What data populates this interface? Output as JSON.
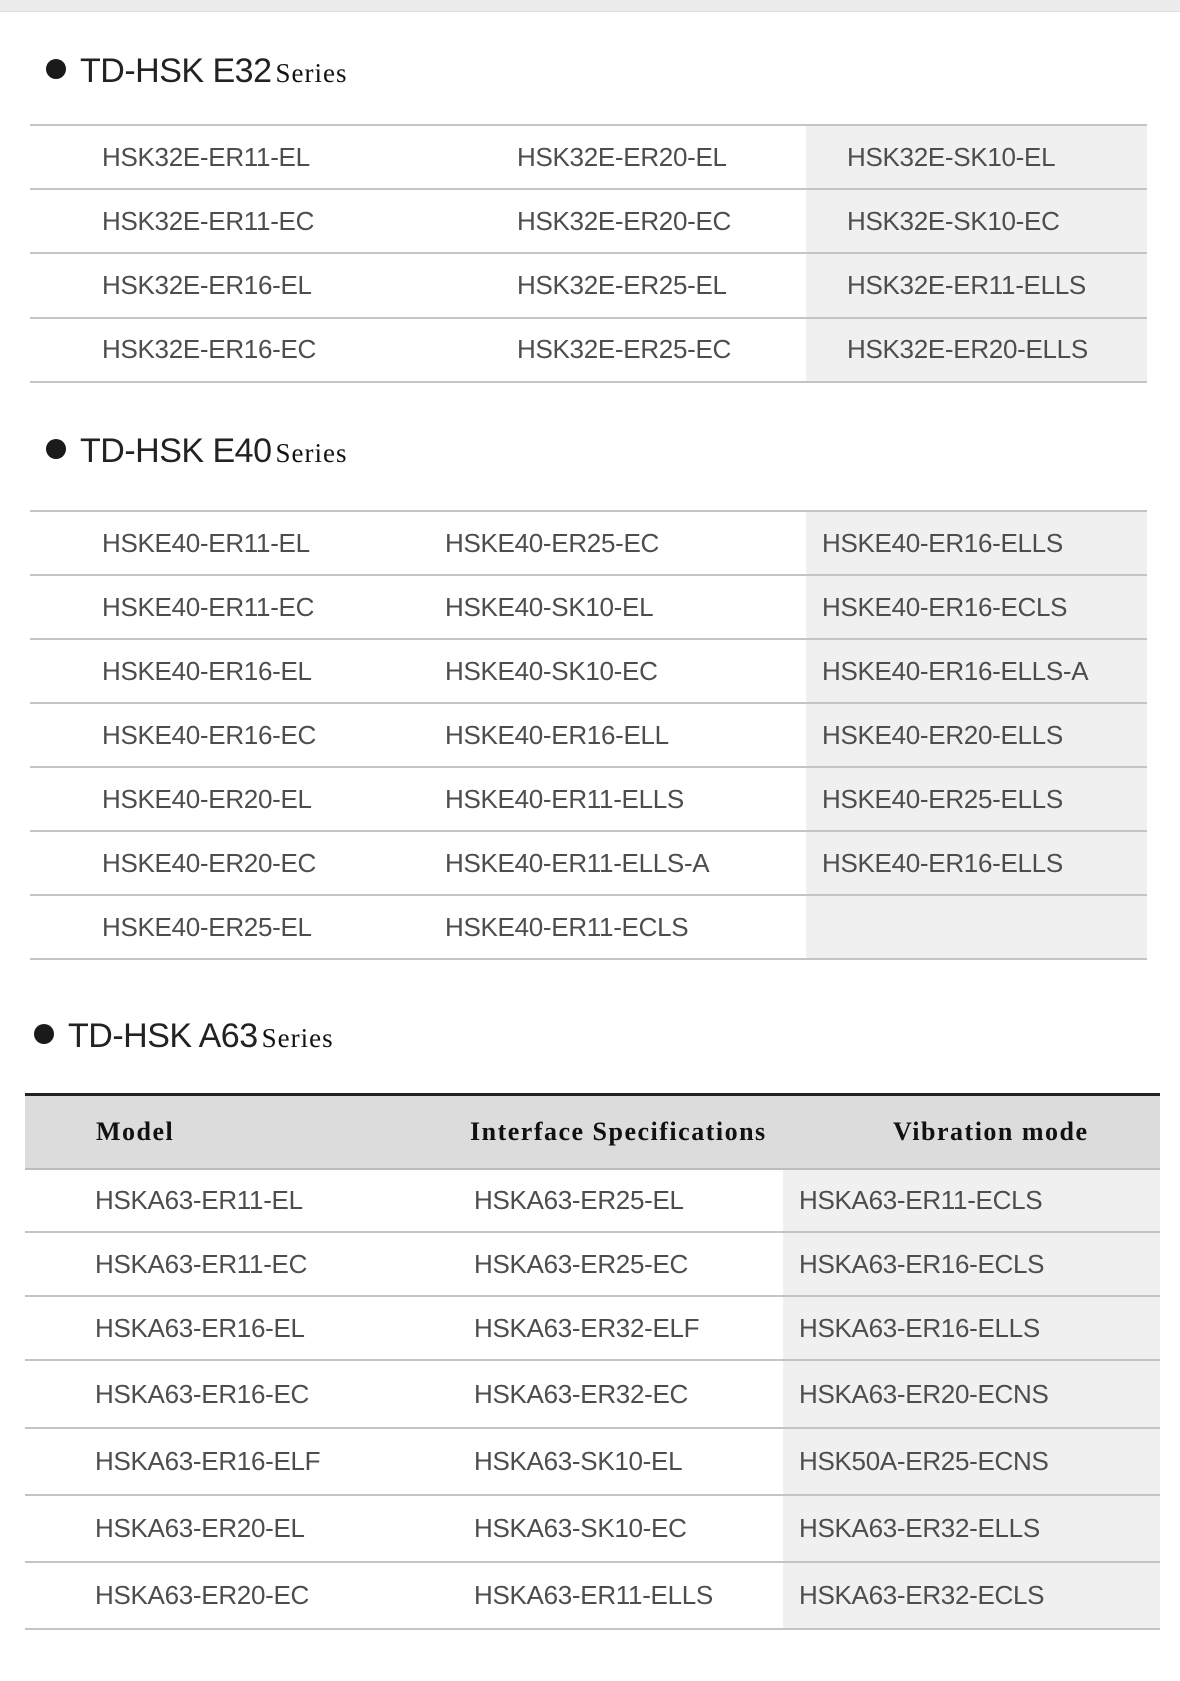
{
  "sections": [
    {
      "title": "TD-HSK E32",
      "suffix": "Series",
      "rows": [
        [
          "HSK32E-ER11-EL",
          "HSK32E-ER20-EL",
          "HSK32E-SK10-EL"
        ],
        [
          "HSK32E-ER11-EC",
          "HSK32E-ER20-EC",
          "HSK32E-SK10-EC"
        ],
        [
          "HSK32E-ER16-EL",
          "HSK32E-ER25-EL",
          "HSK32E-ER11-ELLS"
        ],
        [
          "HSK32E-ER16-EC",
          "HSK32E-ER25-EC",
          "HSK32E-ER20-ELLS"
        ]
      ]
    },
    {
      "title": "TD-HSK E40",
      "suffix": "Series",
      "rows": [
        [
          "HSKE40-ER11-EL",
          "HSKE40-ER25-EC",
          "HSKE40-ER16-ELLS"
        ],
        [
          "HSKE40-ER11-EC",
          "HSKE40-SK10-EL",
          "HSKE40-ER16-ECLS"
        ],
        [
          "HSKE40-ER16-EL",
          "HSKE40-SK10-EC",
          "HSKE40-ER16-ELLS-A"
        ],
        [
          "HSKE40-ER16-EC",
          "HSKE40-ER16-ELL",
          "HSKE40-ER20-ELLS"
        ],
        [
          "HSKE40-ER20-EL",
          "HSKE40-ER11-ELLS",
          "HSKE40-ER25-ELLS"
        ],
        [
          "HSKE40-ER20-EC",
          "HSKE40-ER11-ELLS-A",
          "HSKE40-ER16-ELLS"
        ],
        [
          "HSKE40-ER25-EL",
          "HSKE40-ER11-ECLS",
          ""
        ]
      ]
    },
    {
      "title": "TD-HSK A63",
      "suffix": "Series",
      "headers": [
        "Model",
        "Interface Specifications",
        "Vibration mode"
      ],
      "rows": [
        [
          "HSKA63-ER11-EL",
          "HSKA63-ER25-EL",
          "HSKA63-ER11-ECLS"
        ],
        [
          "HSKA63-ER11-EC",
          "HSKA63-ER25-EC",
          "HSKA63-ER16-ECLS"
        ],
        [
          "HSKA63-ER16-EL",
          "HSKA63-ER32-ELF",
          "HSKA63-ER16-ELLS"
        ],
        [
          "HSKA63-ER16-EC",
          "HSKA63-ER32-EC",
          "HSKA63-ER20-ECNS"
        ],
        [
          "HSKA63-ER16-ELF",
          "HSKA63-SK10-EL",
          "HSK50A-ER25-ECNS"
        ],
        [
          "HSKA63-ER20-EL",
          "HSKA63-SK10-EC",
          "HSKA63-ER32-ELLS"
        ],
        [
          "HSKA63-ER20-EC",
          "HSKA63-ER11-ELLS",
          "HSKA63-ER32-ECLS"
        ]
      ]
    }
  ],
  "colors": {
    "shade": "#f0f0f0",
    "header_bg": "#dcdcdc",
    "rule": "#c4c4c4",
    "text": "#4d4d4d"
  }
}
